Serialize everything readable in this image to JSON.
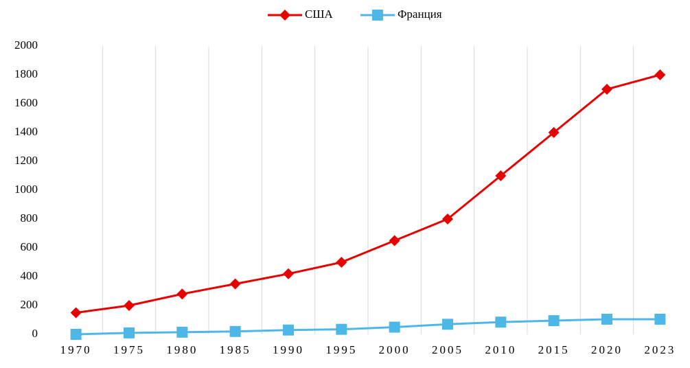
{
  "chart_data": {
    "type": "line",
    "categories": [
      "1970",
      "1975",
      "1980",
      "1985",
      "1990",
      "1995",
      "2000",
      "2005",
      "2010",
      "2015",
      "2020",
      "2023"
    ],
    "series": [
      {
        "name": "США",
        "color": "#e60000",
        "marker": "diamond",
        "values": [
          150,
          200,
          280,
          350,
          420,
          500,
          650,
          800,
          1100,
          1400,
          1700,
          1800
        ]
      },
      {
        "name": "Франция",
        "color": "#4db8e8",
        "marker": "square",
        "values": [
          0,
          10,
          15,
          20,
          30,
          35,
          50,
          70,
          85,
          95,
          105,
          105
        ]
      }
    ],
    "ylim": [
      0,
      2000
    ],
    "yticks": [
      0,
      200,
      400,
      600,
      800,
      1000,
      1200,
      1400,
      1600,
      1800,
      2000
    ],
    "grid": true,
    "legend": "top"
  }
}
